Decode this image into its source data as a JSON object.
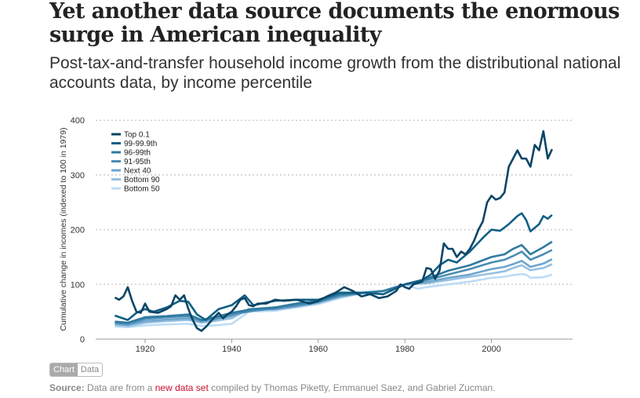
{
  "title": "Yet another data source documents the enormous surge in American inequality",
  "subtitle": "Post-tax-and-transfer household income growth from the distributional national accounts data, by income percentile",
  "toggle": {
    "chart": "Chart",
    "data": "Data",
    "active": "Chart"
  },
  "source": {
    "label": "Source:",
    "pre": "Data are from a",
    "link": "new data set",
    "post": "compiled by Thomas Piketty, Emmanuel Saez, and Gabriel Zucman."
  },
  "chart_data": {
    "type": "line",
    "ylabel": "Cumulative change in incomes (indexed to 100 in 1979)",
    "xlabel": "",
    "xlim": [
      1907,
      2020
    ],
    "ylim": [
      0,
      400
    ],
    "xticks": [
      1920,
      1940,
      1960,
      1980,
      2000
    ],
    "yticks": [
      0,
      100,
      200,
      300,
      400
    ],
    "grid": "horizontal dotted",
    "legend": "top-left",
    "series": [
      {
        "name": "Top 0.1",
        "color": "#0a4566",
        "x": [
          1913,
          1914,
          1915,
          1916,
          1917,
          1918,
          1919,
          1920,
          1921,
          1923,
          1925,
          1926,
          1927,
          1928,
          1929,
          1930,
          1931,
          1932,
          1933,
          1934,
          1936,
          1937,
          1938,
          1939,
          1940,
          1941,
          1942,
          1943,
          1944,
          1945,
          1946,
          1948,
          1950,
          1952,
          1955,
          1958,
          1960,
          1962,
          1964,
          1966,
          1968,
          1970,
          1972,
          1974,
          1976,
          1978,
          1979,
          1980,
          1981,
          1982,
          1984,
          1985,
          1986,
          1987,
          1988,
          1989,
          1990,
          1991,
          1992,
          1993,
          1994,
          1995,
          1996,
          1997,
          1998,
          1999,
          2000,
          2001,
          2002,
          2003,
          2004,
          2005,
          2006,
          2007,
          2008,
          2009,
          2010,
          2011,
          2012,
          2013,
          2014
        ],
        "y": [
          76,
          72,
          78,
          95,
          70,
          50,
          48,
          65,
          50,
          48,
          55,
          60,
          80,
          72,
          80,
          55,
          35,
          20,
          15,
          22,
          40,
          48,
          38,
          45,
          50,
          60,
          72,
          75,
          62,
          60,
          65,
          65,
          72,
          70,
          72,
          65,
          70,
          78,
          85,
          95,
          88,
          78,
          82,
          75,
          78,
          88,
          100,
          95,
          92,
          100,
          105,
          130,
          128,
          110,
          125,
          175,
          165,
          165,
          150,
          160,
          155,
          165,
          180,
          200,
          215,
          250,
          262,
          255,
          258,
          268,
          315,
          330,
          345,
          330,
          330,
          315,
          355,
          345,
          380,
          330,
          347
        ]
      },
      {
        "name": "99-99.9th",
        "color": "#0f5f85",
        "x": [
          1913,
          1916,
          1918,
          1920,
          1922,
          1925,
          1928,
          1930,
          1932,
          1934,
          1937,
          1940,
          1943,
          1945,
          1950,
          1955,
          1960,
          1965,
          1970,
          1975,
          1980,
          1984,
          1986,
          1988,
          1990,
          1992,
          1995,
          1998,
          2000,
          2002,
          2004,
          2006,
          2007,
          2008,
          2009,
          2011,
          2012,
          2013,
          2014
        ],
        "y": [
          43,
          35,
          48,
          55,
          50,
          58,
          70,
          68,
          45,
          35,
          55,
          62,
          80,
          62,
          70,
          72,
          72,
          85,
          85,
          82,
          100,
          108,
          118,
          135,
          145,
          140,
          160,
          185,
          200,
          198,
          210,
          225,
          230,
          218,
          197,
          210,
          225,
          220,
          227
        ]
      },
      {
        "name": "96-99th",
        "color": "#2f7aa0",
        "x": [
          1913,
          1916,
          1920,
          1925,
          1930,
          1933,
          1936,
          1940,
          1945,
          1950,
          1955,
          1960,
          1965,
          1970,
          1975,
          1980,
          1985,
          1990,
          1995,
          2000,
          2003,
          2005,
          2007,
          2009,
          2012,
          2014
        ],
        "y": [
          32,
          30,
          40,
          42,
          45,
          35,
          40,
          48,
          55,
          58,
          65,
          70,
          82,
          85,
          88,
          100,
          110,
          125,
          135,
          150,
          155,
          165,
          172,
          155,
          168,
          178
        ]
      },
      {
        "name": "91-95th",
        "color": "#4a8db4",
        "x": [
          1913,
          1916,
          1920,
          1925,
          1930,
          1933,
          1936,
          1940,
          1945,
          1950,
          1955,
          1960,
          1965,
          1970,
          1975,
          1980,
          1985,
          1990,
          1995,
          2000,
          2003,
          2005,
          2007,
          2009,
          2012,
          2014
        ],
        "y": [
          30,
          28,
          37,
          40,
          42,
          34,
          38,
          45,
          52,
          56,
          62,
          68,
          80,
          84,
          88,
          100,
          108,
          118,
          128,
          140,
          145,
          152,
          160,
          145,
          155,
          163
        ]
      },
      {
        "name": "Next 40",
        "color": "#6fa5cc",
        "x": [
          1913,
          1916,
          1920,
          1925,
          1930,
          1933,
          1936,
          1940,
          1944,
          1950,
          1955,
          1960,
          1965,
          1970,
          1975,
          1980,
          1985,
          1990,
          1995,
          2000,
          2003,
          2005,
          2007,
          2009,
          2012,
          2014
        ],
        "y": [
          28,
          26,
          33,
          36,
          38,
          32,
          36,
          42,
          55,
          55,
          60,
          67,
          78,
          84,
          88,
          100,
          104,
          112,
          118,
          128,
          132,
          137,
          143,
          132,
          138,
          146
        ]
      },
      {
        "name": "Bottom 90",
        "color": "#95c0e2",
        "x": [
          1913,
          1916,
          1920,
          1925,
          1930,
          1933,
          1936,
          1940,
          1944,
          1950,
          1955,
          1960,
          1965,
          1970,
          1975,
          1980,
          1985,
          1990,
          1995,
          2000,
          2003,
          2005,
          2007,
          2009,
          2012,
          2014
        ],
        "y": [
          26,
          24,
          30,
          33,
          35,
          30,
          33,
          38,
          55,
          54,
          60,
          66,
          77,
          84,
          88,
          100,
          102,
          108,
          114,
          120,
          124,
          130,
          135,
          126,
          130,
          137
        ]
      },
      {
        "name": "Bottom 50",
        "color": "#bcdcf7",
        "x": [
          1913,
          1916,
          1920,
          1925,
          1930,
          1933,
          1936,
          1940,
          1944,
          1950,
          1955,
          1960,
          1965,
          1970,
          1975,
          1980,
          1983,
          1985,
          1990,
          1995,
          2000,
          2003,
          2005,
          2007,
          2008,
          2009,
          2012,
          2014
        ],
        "y": [
          23,
          22,
          25,
          27,
          28,
          24,
          25,
          28,
          50,
          52,
          58,
          64,
          75,
          84,
          88,
          100,
          92,
          95,
          100,
          105,
          112,
          114,
          117,
          119,
          118,
          112,
          113,
          118
        ]
      }
    ]
  }
}
